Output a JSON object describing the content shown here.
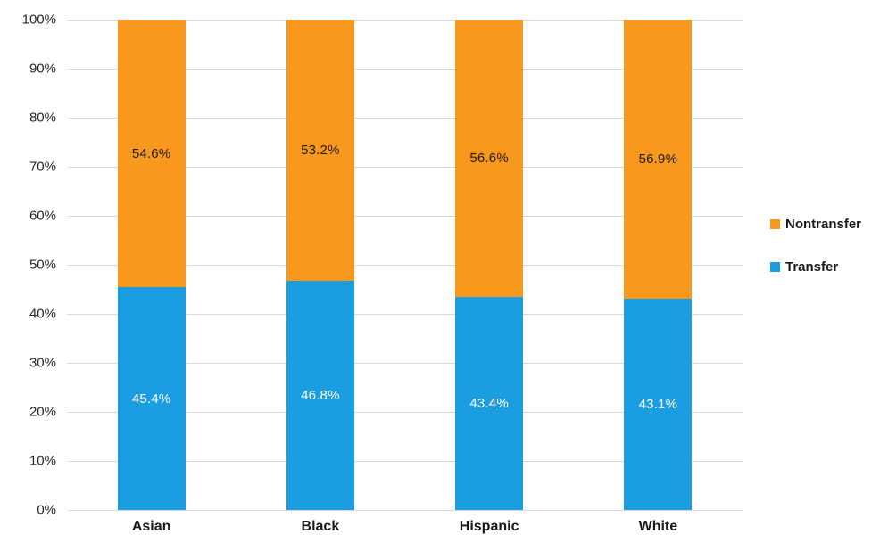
{
  "chart_data": {
    "type": "bar",
    "subtype": "stacked-100-percent",
    "title": "",
    "xlabel": "",
    "ylabel": "",
    "categories": [
      "Asian",
      "Black",
      "Hispanic",
      "White"
    ],
    "series": [
      {
        "name": "Transfer",
        "color": "#1B9DE2",
        "label_color": "#FFFFFF",
        "values": [
          45.4,
          46.8,
          43.4,
          43.1
        ],
        "data_labels": [
          "45.4%",
          "46.8%",
          "43.4%",
          "43.1%"
        ]
      },
      {
        "name": "Nontransfer",
        "color": "#F8981D",
        "label_color": "#1A1A1A",
        "values": [
          54.6,
          53.2,
          56.6,
          56.9
        ],
        "data_labels": [
          "54.6%",
          "53.2%",
          "56.6%",
          "56.9%"
        ]
      }
    ],
    "y_axis": {
      "min": 0,
      "max": 100,
      "step": 10,
      "tick_labels": [
        "0%",
        "10%",
        "20%",
        "30%",
        "40%",
        "50%",
        "60%",
        "70%",
        "80%",
        "90%",
        "100%"
      ]
    },
    "grid": true,
    "gridline_color": "#D9D9D9",
    "legend_position": "right"
  },
  "legend": {
    "items": [
      {
        "label": "Nontransfer",
        "color": "#F8981D"
      },
      {
        "label": "Transfer",
        "color": "#1B9DE2"
      }
    ]
  }
}
